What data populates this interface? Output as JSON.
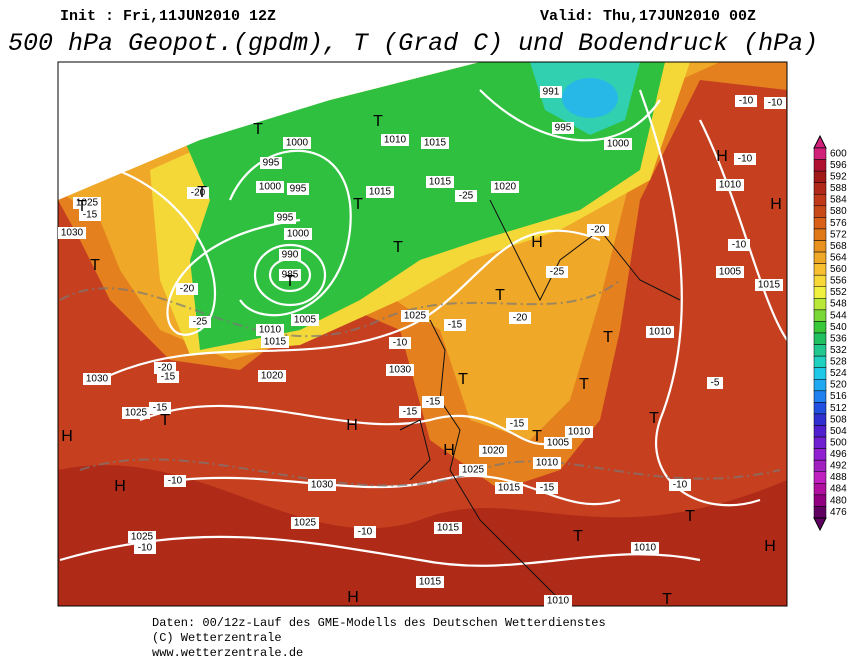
{
  "header": {
    "init": "Init : Fri,11JUN2010 12Z",
    "valid": "Valid: Thu,17JUN2010 00Z",
    "title": "500 hPa Geopot.(gpdm), T (Grad C) und Bodendruck (hPa)"
  },
  "colorbar": {
    "ticks": [
      600,
      596,
      592,
      588,
      584,
      580,
      576,
      572,
      568,
      564,
      560,
      556,
      552,
      548,
      544,
      540,
      536,
      532,
      528,
      524,
      520,
      516,
      512,
      508,
      504,
      500,
      496,
      492,
      488,
      484,
      480,
      476
    ],
    "colors": [
      "#d0207a",
      "#b01030",
      "#a01818",
      "#b02818",
      "#c03a18",
      "#c84a18",
      "#d86018",
      "#e07818",
      "#e89020",
      "#f0a828",
      "#f8c030",
      "#f8d838",
      "#f0f040",
      "#b8e838",
      "#78d838",
      "#38c838",
      "#20c060",
      "#20c890",
      "#20d0c0",
      "#20c8e8",
      "#20a8f0",
      "#2080f0",
      "#2050e0",
      "#3030d0",
      "#5020d0",
      "#7020d0",
      "#9020d0",
      "#a020c0",
      "#c020c0",
      "#b010a0",
      "#900080",
      "#600060"
    ]
  },
  "map": {
    "labels": [
      "991",
      "995",
      "1000",
      "1000",
      "995",
      "1000",
      "995",
      "995",
      "1000",
      "990",
      "985",
      "1005",
      "1010",
      "1015",
      "1010",
      "1015",
      "1015",
      "1015",
      "1020",
      "1025",
      "1030",
      "1030",
      "1025",
      "1020",
      "1025",
      "1030",
      "1030",
      "1025",
      "1025",
      "1020",
      "1025",
      "1015",
      "1005",
      "1010",
      "1010",
      "1010",
      "1010",
      "1005",
      "1015",
      "1010",
      "1010",
      "1015",
      "1015",
      "-20",
      "-15",
      "-25",
      "-20",
      "-20",
      "-15",
      "-15",
      "-10",
      "-10",
      "-10",
      "-15",
      "-15",
      "-15",
      "-10",
      "-25",
      "-20",
      "-25",
      "-20",
      "-10",
      "-10",
      "-10",
      "-15",
      "-15",
      "-10",
      "-5",
      "-10",
      "H",
      "H",
      "H",
      "H",
      "H",
      "H",
      "H",
      "H",
      "H",
      "T",
      "T",
      "T",
      "T",
      "T",
      "T",
      "T",
      "T",
      "T",
      "T",
      "T",
      "T",
      "T",
      "T",
      "T",
      "T",
      "T",
      "T"
    ]
  },
  "footer": {
    "lines": [
      "Daten: 00/12z-Lauf des GME-Modells des Deutschen Wetterdienstes",
      "(C) Wetterzentrale",
      "www.wetterzentrale.de"
    ]
  }
}
